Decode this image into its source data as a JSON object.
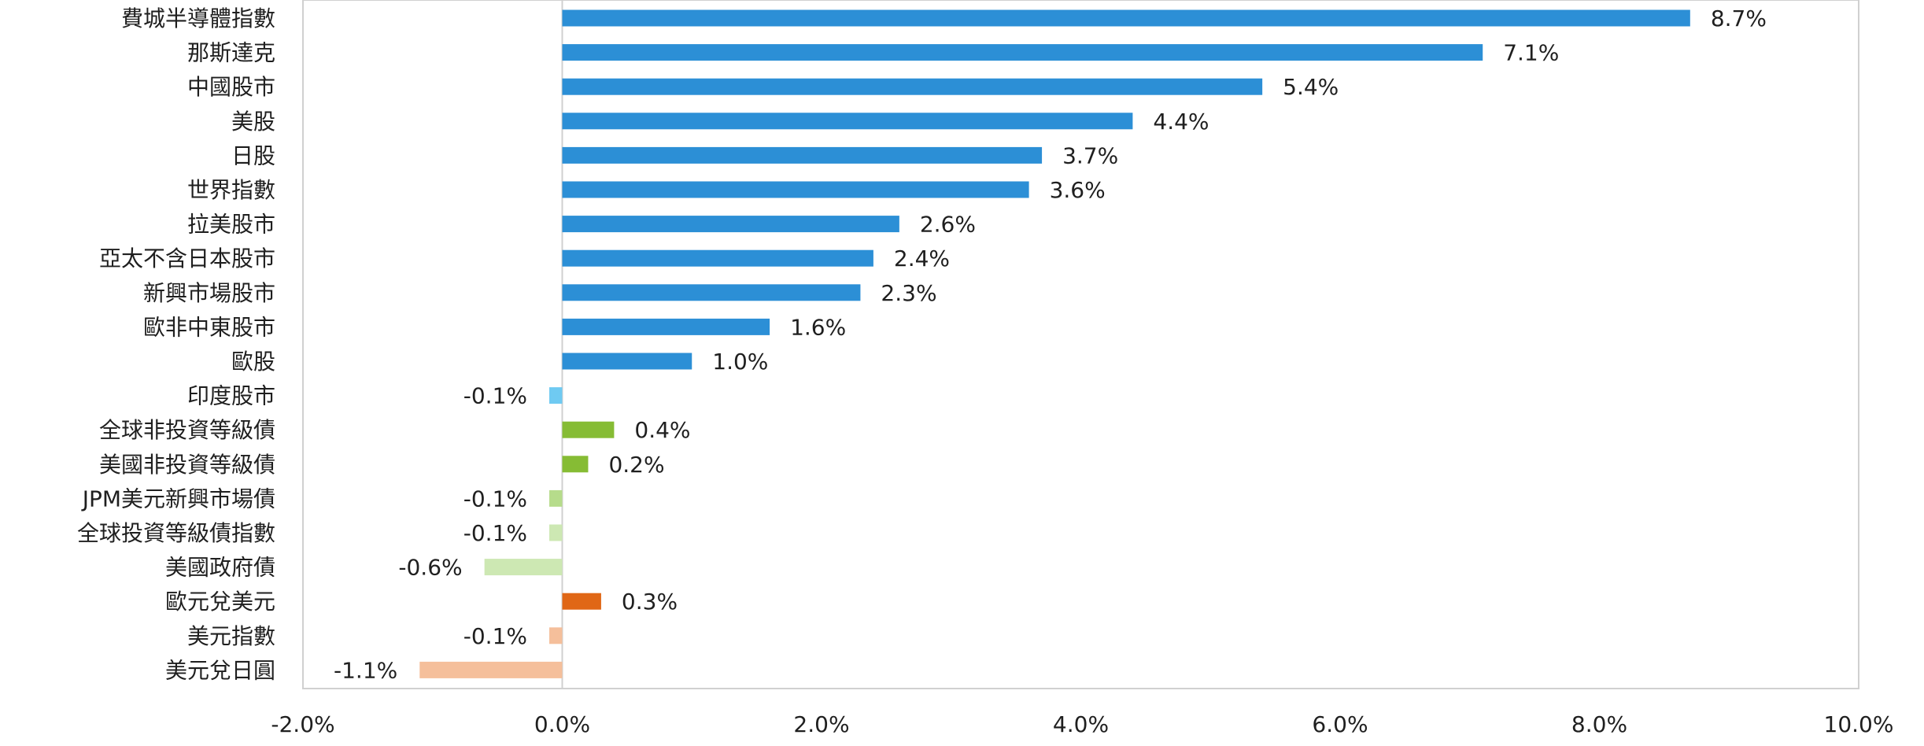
{
  "chart_data": {
    "type": "bar",
    "orientation": "horizontal",
    "title": "",
    "xlabel": "",
    "ylabel": "",
    "xlim": [
      -2.0,
      10.0
    ],
    "x_ticks": [
      -2.0,
      0.0,
      2.0,
      4.0,
      6.0,
      8.0,
      10.0
    ],
    "x_tick_labels": [
      "-2.0%",
      "0.0%",
      "2.0%",
      "4.0%",
      "6.0%",
      "8.0%",
      "10.0%"
    ],
    "grid": false,
    "legend": "none",
    "categories": [
      "費城半導體指數",
      "那斯達克",
      "中國股市",
      "美股",
      "日股",
      "世界指數",
      "拉美股市",
      "亞太不含日本股市",
      "新興市場股市",
      "歐非中東股市",
      "歐股",
      "印度股市",
      "全球非投資等級債",
      "美國非投資等級債",
      "JPM美元新興市場債",
      "全球投資等級債指數",
      "美國政府債",
      "歐元兌美元",
      "美元指數",
      "美元兌日圓"
    ],
    "values": [
      8.7,
      7.1,
      5.4,
      4.4,
      3.7,
      3.6,
      2.6,
      2.4,
      2.3,
      1.6,
      1.0,
      -0.1,
      0.4,
      0.2,
      -0.1,
      -0.1,
      -0.6,
      0.3,
      -0.1,
      -1.1
    ],
    "value_labels": [
      "8.7%",
      "7.1%",
      "5.4%",
      "4.4%",
      "3.7%",
      "3.6%",
      "2.6%",
      "2.4%",
      "2.3%",
      "1.6%",
      "1.0%",
      "-0.1%",
      "0.4%",
      "0.2%",
      "-0.1%",
      "-0.1%",
      "-0.6%",
      "0.3%",
      "-0.1%",
      "-1.1%"
    ],
    "bar_colors": [
      "#2c8fd6",
      "#2c8fd6",
      "#2c8fd6",
      "#2c8fd6",
      "#2c8fd6",
      "#2c8fd6",
      "#2c8fd6",
      "#2c8fd6",
      "#2c8fd6",
      "#2c8fd6",
      "#2c8fd6",
      "#6fcaf2",
      "#86bc34",
      "#86bc34",
      "#b6dc8b",
      "#cde8b3",
      "#cde8b3",
      "#e06716",
      "#f5bf9b",
      "#f5bf9b"
    ],
    "axis_color": "#d0d0d0",
    "zero_line_color": "#d0d0d0"
  }
}
